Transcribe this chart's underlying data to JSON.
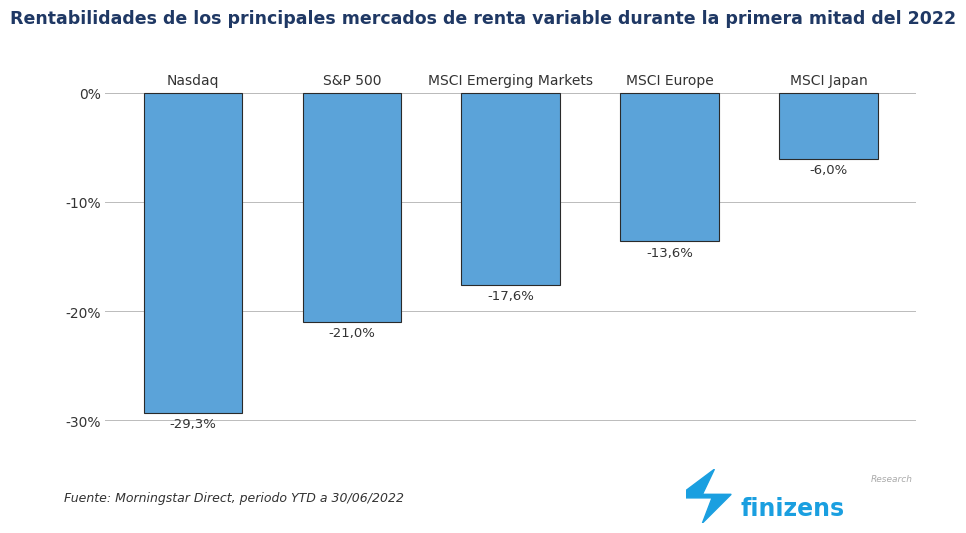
{
  "title": "Rentabilidades de los principales mercados de renta variable durante la primera mitad del 2022",
  "categories": [
    "Nasdaq",
    "S&P 500",
    "MSCI Emerging Markets",
    "MSCI Europe",
    "MSCI Japan"
  ],
  "values": [
    -29.3,
    -21.0,
    -17.6,
    -13.6,
    -6.0
  ],
  "labels": [
    "-29,3%",
    "-21,0%",
    "-17,6%",
    "-13,6%",
    "-6,0%"
  ],
  "bar_color": "#5BA3D9",
  "bar_edgecolor": "#2a2a2a",
  "bar_edgewidth": 0.8,
  "background_color": "#ffffff",
  "ylim": [
    -33,
    3.5
  ],
  "yticks": [
    0,
    -10,
    -20,
    -30
  ],
  "ytick_labels": [
    "0%",
    "-10%",
    "-20%",
    "-30%"
  ],
  "title_color": "#1F3864",
  "title_fontsize": 12.5,
  "footnote": "Fuente: Morningstar Direct, periodo YTD a 30/06/2022",
  "footnote_fontsize": 9,
  "label_fontsize": 9.5,
  "category_fontsize": 10,
  "grid_color": "#bbbbbb",
  "finizens_color": "#1a9fe0",
  "research_color": "#aaaaaa",
  "bar_width": 0.62
}
